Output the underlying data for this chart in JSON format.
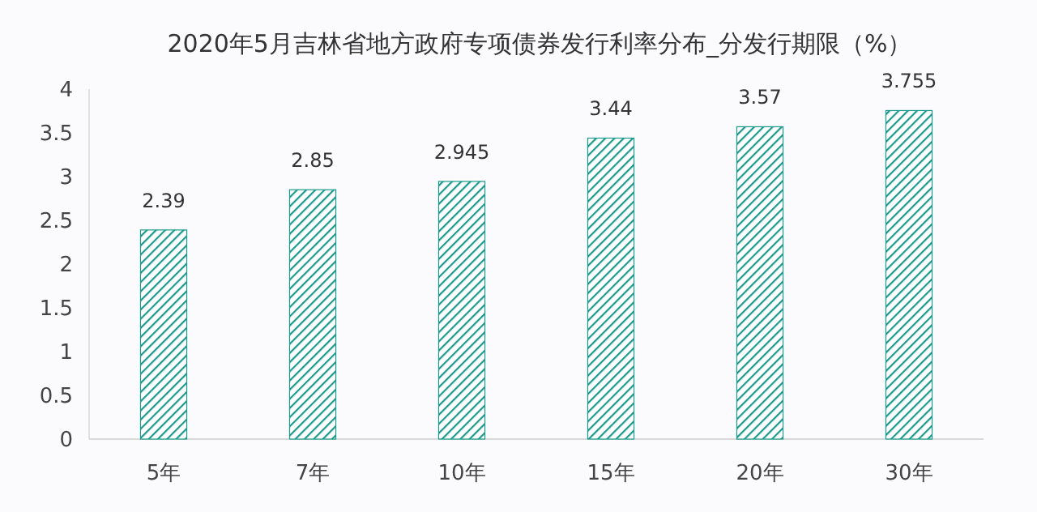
{
  "chart_data": {
    "type": "bar",
    "title": "2020年5月吉林省地方政府专项债券发行利率分布_分发行期限（%）",
    "categories": [
      "5年",
      "7年",
      "10年",
      "15年",
      "20年",
      "30年"
    ],
    "values": [
      2.39,
      2.85,
      2.945,
      3.44,
      3.57,
      3.755
    ],
    "color": "#1a9a8c",
    "ylim": [
      0,
      4
    ],
    "yticks": [
      0,
      0.5,
      1,
      1.5,
      2,
      2.5,
      3,
      3.5,
      4
    ],
    "grid": false,
    "data_labels": true
  }
}
